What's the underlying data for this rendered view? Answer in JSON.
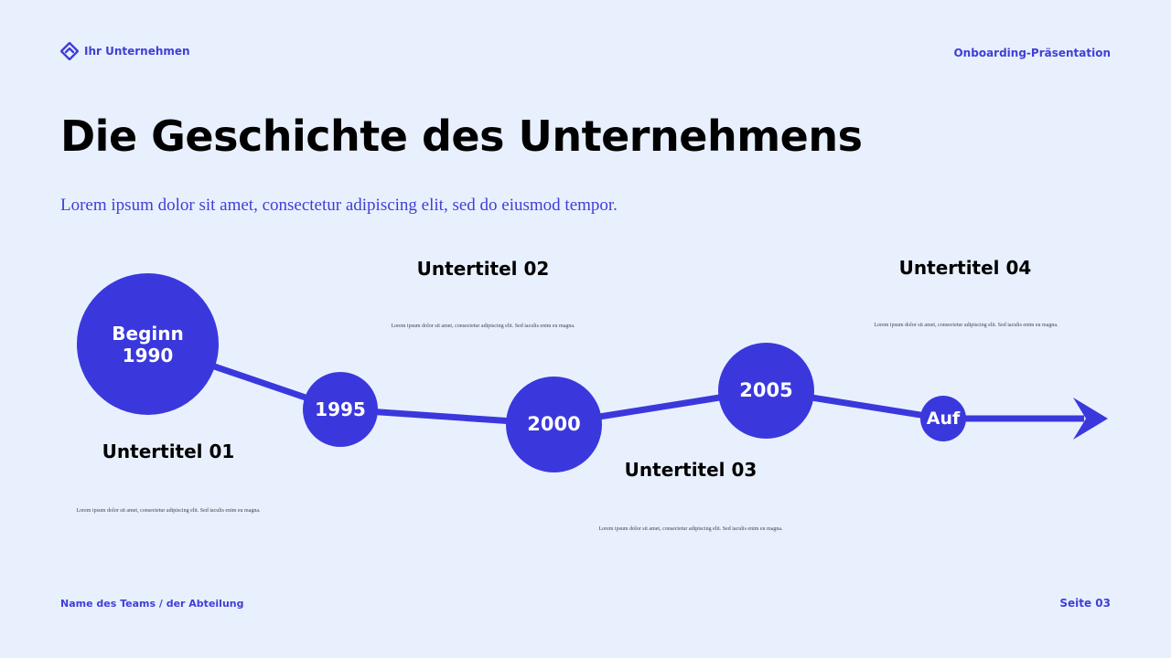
{
  "header": {
    "brand_name": "Ihr Unternehmen",
    "brand_icon": "diamond-logo-icon",
    "presentation_label": "Onboarding-Präsentation"
  },
  "title": "Die Geschichte des Unternehmens",
  "subtitle": "Lorem ipsum dolor sit amet, consectetur adipiscing elit, sed do eiusmod tempor.",
  "milestones": [
    {
      "label_line1": "Beginn",
      "label_line2": "1990"
    },
    {
      "label_line1": "1995",
      "label_line2": ""
    },
    {
      "label_line1": "2000",
      "label_line2": ""
    },
    {
      "label_line1": "2005",
      "label_line2": ""
    },
    {
      "label_line1": "Auf",
      "label_line2": ""
    }
  ],
  "sections": [
    {
      "heading": "Untertitel 01",
      "text": "Lorem ipsum dolor sit amet, consectetur adipiscing elit. Sed iaculis enim eu magna."
    },
    {
      "heading": "Untertitel 02",
      "text": "Lorem ipsum dolor sit amet, consectetur adipiscing elit. Sed iaculis enim eu magna."
    },
    {
      "heading": "Untertitel 03",
      "text": "Lorem ipsum dolor sit amet, consectetur adipiscing elit. Sed iaculis enim eu magna."
    },
    {
      "heading": "Untertitel 04",
      "text": "Lorem ipsum dolor sit amet, consectetur adipiscing elit. Sed iaculis enim eu magna."
    }
  ],
  "footer": {
    "team": "Name des Teams / der Abteilung",
    "page": "Seite 03"
  },
  "colors": {
    "background": "#E8F0FE",
    "accent": "#3A38DD",
    "text": "#000000"
  }
}
